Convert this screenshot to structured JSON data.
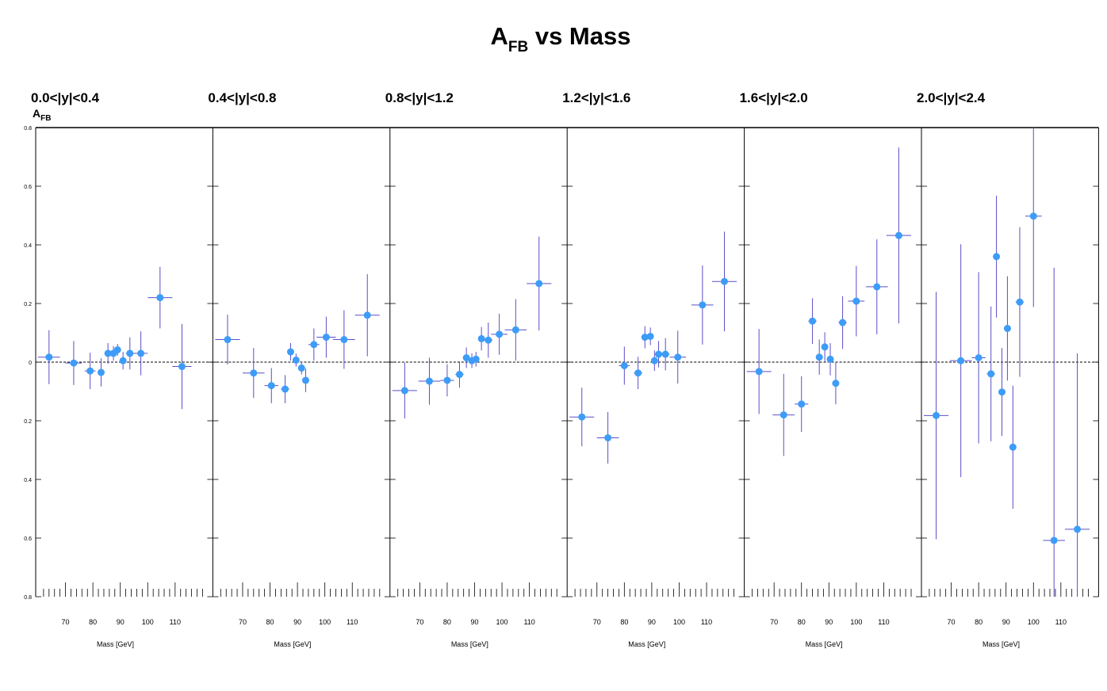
{
  "title": {
    "main": "A",
    "sub": "FB",
    "rest": " vs Mass"
  },
  "y_axis_label": {
    "main": "A",
    "sub": "FB"
  },
  "y_tick_labels": [
    "0.8",
    "0.6",
    "0.4",
    "0.2",
    "0",
    "0.2",
    "0.4",
    "0.6",
    "0.8"
  ],
  "colors": {
    "marker": "#3d9cf7",
    "error_bar": "#5a4fc8",
    "axis": "#000000",
    "zero_line": "#000000"
  },
  "chart_data": [
    {
      "type": "scatter",
      "panel_label": "0.0<|y|<0.4",
      "xlabel": "Mass [GeV]",
      "ylabel": "AFB",
      "x_ticks": [
        70,
        80,
        90,
        100,
        110
      ],
      "xlim": [
        60,
        120
      ],
      "ylim": [
        -0.8,
        0.8
      ],
      "zero_reference_line": true,
      "points": [
        {
          "x": 64,
          "y": 0.017,
          "xerr": 4,
          "yerr": 0.092
        },
        {
          "x": 73,
          "y": -0.003,
          "xerr": 3,
          "yerr": 0.075
        },
        {
          "x": 79,
          "y": -0.03,
          "xerr": 2,
          "yerr": 0.062
        },
        {
          "x": 83,
          "y": -0.035,
          "xerr": 1,
          "yerr": 0.048
        },
        {
          "x": 85.5,
          "y": 0.03,
          "xerr": 1,
          "yerr": 0.035
        },
        {
          "x": 87.5,
          "y": 0.03,
          "xerr": 1,
          "yerr": 0.025
        },
        {
          "x": 89,
          "y": 0.042,
          "xerr": 1,
          "yerr": 0.02
        },
        {
          "x": 91,
          "y": 0.005,
          "xerr": 1,
          "yerr": 0.03
        },
        {
          "x": 93.5,
          "y": 0.03,
          "xerr": 1.5,
          "yerr": 0.055
        },
        {
          "x": 97.5,
          "y": 0.03,
          "xerr": 2.5,
          "yerr": 0.075
        },
        {
          "x": 104.5,
          "y": 0.22,
          "xerr": 4.5,
          "yerr": 0.105
        },
        {
          "x": 112.5,
          "y": -0.015,
          "xerr": 3.5,
          "yerr": 0.145
        }
      ]
    },
    {
      "type": "scatter",
      "panel_label": "0.4<|y|<0.8",
      "xlabel": "Mass [GeV]",
      "ylabel": "AFB",
      "x_ticks": [
        70,
        80,
        90,
        100,
        110
      ],
      "xlim": [
        60,
        120
      ],
      "ylim": [
        -0.8,
        0.8
      ],
      "zero_reference_line": true,
      "points": [
        {
          "x": 64.5,
          "y": 0.077,
          "xerr": 4.5,
          "yerr": 0.085
        },
        {
          "x": 74,
          "y": -0.037,
          "xerr": 4,
          "yerr": 0.085
        },
        {
          "x": 80.5,
          "y": -0.08,
          "xerr": 2.5,
          "yerr": 0.06
        },
        {
          "x": 85.5,
          "y": -0.092,
          "xerr": 1.5,
          "yerr": 0.048
        },
        {
          "x": 87.5,
          "y": 0.035,
          "xerr": 1,
          "yerr": 0.03
        },
        {
          "x": 89.5,
          "y": 0.007,
          "xerr": 1,
          "yerr": 0.022
        },
        {
          "x": 91.5,
          "y": -0.02,
          "xerr": 1,
          "yerr": 0.022
        },
        {
          "x": 93,
          "y": -0.062,
          "xerr": 1,
          "yerr": 0.04
        },
        {
          "x": 96,
          "y": 0.06,
          "xerr": 2,
          "yerr": 0.055
        },
        {
          "x": 100.5,
          "y": 0.085,
          "xerr": 3.5,
          "yerr": 0.07
        },
        {
          "x": 107,
          "y": 0.077,
          "xerr": 4,
          "yerr": 0.1
        },
        {
          "x": 115.5,
          "y": 0.16,
          "xerr": 4.5,
          "yerr": 0.14
        }
      ]
    },
    {
      "type": "scatter",
      "panel_label": "0.8<|y|<1.2",
      "xlabel": "Mass [GeV]",
      "ylabel": "AFB",
      "x_ticks": [
        70,
        80,
        90,
        100,
        110
      ],
      "xlim": [
        60,
        120
      ],
      "ylim": [
        -0.8,
        0.8
      ],
      "zero_reference_line": true,
      "points": [
        {
          "x": 64.5,
          "y": -0.097,
          "xerr": 4.5,
          "yerr": 0.095
        },
        {
          "x": 73.5,
          "y": -0.065,
          "xerr": 4,
          "yerr": 0.08
        },
        {
          "x": 80,
          "y": -0.062,
          "xerr": 2.5,
          "yerr": 0.055
        },
        {
          "x": 84.5,
          "y": -0.042,
          "xerr": 1.5,
          "yerr": 0.045
        },
        {
          "x": 87,
          "y": 0.015,
          "xerr": 1,
          "yerr": 0.035
        },
        {
          "x": 89,
          "y": 0.005,
          "xerr": 1,
          "yerr": 0.025
        },
        {
          "x": 90.5,
          "y": 0.01,
          "xerr": 1,
          "yerr": 0.025
        },
        {
          "x": 92.5,
          "y": 0.08,
          "xerr": 1,
          "yerr": 0.04
        },
        {
          "x": 95,
          "y": 0.075,
          "xerr": 1.5,
          "yerr": 0.06
        },
        {
          "x": 99,
          "y": 0.095,
          "xerr": 3,
          "yerr": 0.07
        },
        {
          "x": 105,
          "y": 0.11,
          "xerr": 4,
          "yerr": 0.105
        },
        {
          "x": 113.5,
          "y": 0.268,
          "xerr": 4.5,
          "yerr": 0.16
        }
      ]
    },
    {
      "type": "scatter",
      "panel_label": "1.2<|y|<1.6",
      "xlabel": "Mass [GeV]",
      "ylabel": "AFB",
      "x_ticks": [
        70,
        80,
        90,
        100,
        110
      ],
      "xlim": [
        60,
        120
      ],
      "ylim": [
        -0.8,
        0.8
      ],
      "zero_reference_line": true,
      "points": [
        {
          "x": 64.5,
          "y": -0.187,
          "xerr": 4.5,
          "yerr": 0.1
        },
        {
          "x": 74,
          "y": -0.258,
          "xerr": 4,
          "yerr": 0.088
        },
        {
          "x": 80,
          "y": -0.012,
          "xerr": 2,
          "yerr": 0.065
        },
        {
          "x": 85,
          "y": -0.037,
          "xerr": 1.5,
          "yerr": 0.055
        },
        {
          "x": 87.5,
          "y": 0.085,
          "xerr": 1,
          "yerr": 0.038
        },
        {
          "x": 89.5,
          "y": 0.088,
          "xerr": 1,
          "yerr": 0.03
        },
        {
          "x": 91,
          "y": 0.005,
          "xerr": 1,
          "yerr": 0.035
        },
        {
          "x": 92.5,
          "y": 0.027,
          "xerr": 1,
          "yerr": 0.045
        },
        {
          "x": 95,
          "y": 0.027,
          "xerr": 1.5,
          "yerr": 0.055
        },
        {
          "x": 99.5,
          "y": 0.017,
          "xerr": 3,
          "yerr": 0.09
        },
        {
          "x": 108.5,
          "y": 0.195,
          "xerr": 4,
          "yerr": 0.135
        },
        {
          "x": 116.5,
          "y": 0.275,
          "xerr": 4.5,
          "yerr": 0.17
        }
      ]
    },
    {
      "type": "scatter",
      "panel_label": "1.6<|y|<2.0",
      "xlabel": "Mass [GeV]",
      "ylabel": "AFB",
      "x_ticks": [
        70,
        80,
        90,
        100,
        110
      ],
      "xlim": [
        60,
        120
      ],
      "ylim": [
        -0.8,
        0.8
      ],
      "zero_reference_line": true,
      "points": [
        {
          "x": 64.5,
          "y": -0.032,
          "xerr": 4.5,
          "yerr": 0.145
        },
        {
          "x": 73.5,
          "y": -0.18,
          "xerr": 4,
          "yerr": 0.14
        },
        {
          "x": 80,
          "y": -0.143,
          "xerr": 2.5,
          "yerr": 0.095
        },
        {
          "x": 84,
          "y": 0.14,
          "xerr": 1.5,
          "yerr": 0.078
        },
        {
          "x": 86.5,
          "y": 0.017,
          "xerr": 1,
          "yerr": 0.06
        },
        {
          "x": 88.5,
          "y": 0.052,
          "xerr": 1,
          "yerr": 0.05
        },
        {
          "x": 90.5,
          "y": 0.01,
          "xerr": 1,
          "yerr": 0.055
        },
        {
          "x": 92.5,
          "y": -0.072,
          "xerr": 1,
          "yerr": 0.072
        },
        {
          "x": 95,
          "y": 0.135,
          "xerr": 1.5,
          "yerr": 0.09
        },
        {
          "x": 100,
          "y": 0.208,
          "xerr": 3,
          "yerr": 0.12
        },
        {
          "x": 107.5,
          "y": 0.257,
          "xerr": 4,
          "yerr": 0.162
        },
        {
          "x": 115.5,
          "y": 0.432,
          "xerr": 4.5,
          "yerr": 0.3
        }
      ]
    },
    {
      "type": "scatter",
      "panel_label": "2.0<|y|<2.4",
      "xlabel": "Mass [GeV]",
      "ylabel": "AFB",
      "x_ticks": [
        70,
        80,
        90,
        100,
        110
      ],
      "xlim": [
        60,
        120
      ],
      "ylim": [
        -0.8,
        0.8
      ],
      "zero_reference_line": true,
      "points": [
        {
          "x": 64.5,
          "y": -0.182,
          "xerr": 4.5,
          "yerr": 0.422
        },
        {
          "x": 73.5,
          "y": 0.005,
          "xerr": 4,
          "yerr": 0.397
        },
        {
          "x": 80,
          "y": 0.015,
          "xerr": 2.5,
          "yerr": 0.292
        },
        {
          "x": 84.5,
          "y": -0.04,
          "xerr": 1.5,
          "yerr": 0.23
        },
        {
          "x": 86.5,
          "y": 0.36,
          "xerr": 1,
          "yerr": 0.208
        },
        {
          "x": 88.5,
          "y": -0.102,
          "xerr": 1,
          "yerr": 0.15
        },
        {
          "x": 90.5,
          "y": 0.115,
          "xerr": 1,
          "yerr": 0.178
        },
        {
          "x": 92.5,
          "y": -0.29,
          "xerr": 1,
          "yerr": 0.21
        },
        {
          "x": 95,
          "y": 0.205,
          "xerr": 1.5,
          "yerr": 0.255
        },
        {
          "x": 100,
          "y": 0.498,
          "xerr": 3,
          "yerr": 0.31
        },
        {
          "x": 107.5,
          "y": -0.608,
          "xerr": 4,
          "yerr": 0.93
        },
        {
          "x": 116,
          "y": -0.57,
          "xerr": 4.5,
          "yerr": 0.6
        }
      ]
    }
  ]
}
